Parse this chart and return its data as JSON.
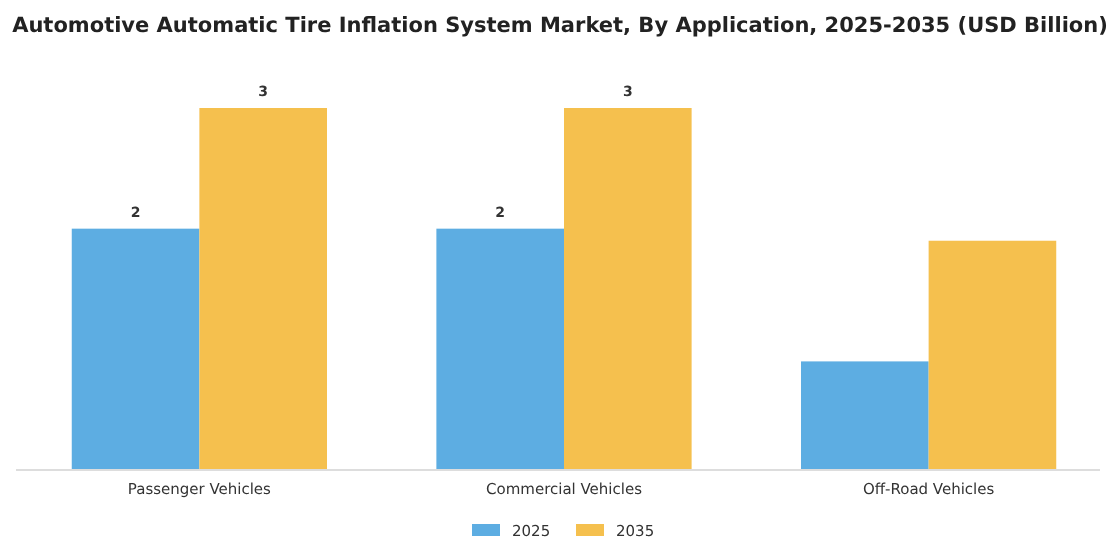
{
  "chart_data": {
    "type": "bar",
    "title": "Automotive Automatic Tire Inflation System Market, By Application, 2025-2035 (USD Billion)",
    "categories": [
      "Passenger Vehicles",
      "Commercial Vehicles",
      "Off-Road Vehicles"
    ],
    "legend": "bottom",
    "series": [
      {
        "name": "2025",
        "color": "#5dade2",
        "values": [
          2,
          2,
          0.9
        ],
        "value_labels": [
          "2",
          "2",
          null
        ]
      },
      {
        "name": "2035",
        "color": "#f5c04e",
        "values": [
          3,
          3,
          1.9
        ],
        "value_labels": [
          "3",
          "3",
          null
        ]
      }
    ]
  }
}
